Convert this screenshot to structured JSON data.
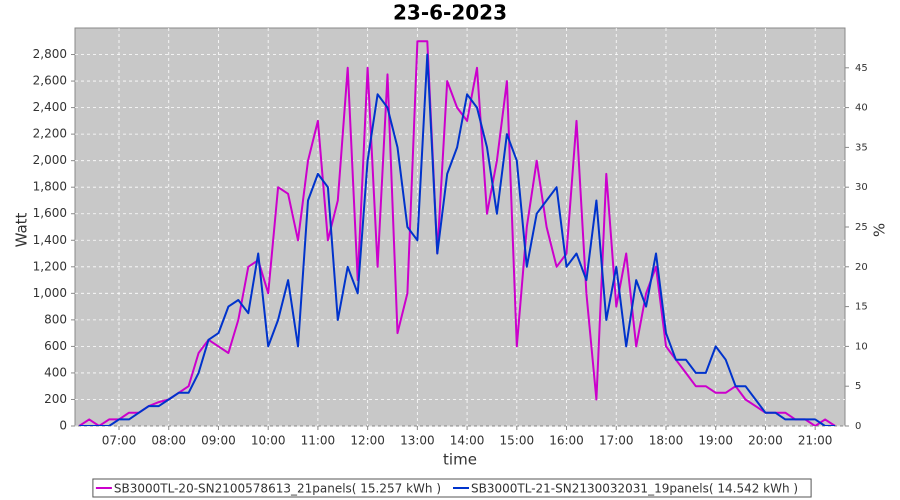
{
  "chart_data": {
    "type": "line",
    "title": "23-6-2023",
    "xlabel": "time",
    "ylabel": "Watt",
    "y2label": "%",
    "x": [
      6.2,
      6.4,
      6.6,
      6.8,
      7.0,
      7.2,
      7.4,
      7.6,
      7.8,
      8.0,
      8.2,
      8.4,
      8.6,
      8.8,
      9.0,
      9.2,
      9.4,
      9.6,
      9.8,
      10.0,
      10.2,
      10.4,
      10.6,
      10.8,
      11.0,
      11.2,
      11.4,
      11.6,
      11.8,
      12.0,
      12.2,
      12.4,
      12.6,
      12.8,
      13.0,
      13.2,
      13.4,
      13.6,
      13.8,
      14.0,
      14.2,
      14.4,
      14.6,
      14.8,
      15.0,
      15.2,
      15.4,
      15.6,
      15.8,
      16.0,
      16.2,
      16.4,
      16.6,
      16.8,
      17.0,
      17.2,
      17.4,
      17.6,
      17.8,
      18.0,
      18.2,
      18.4,
      18.6,
      18.8,
      19.0,
      19.2,
      19.4,
      19.6,
      19.8,
      20.0,
      20.2,
      20.4,
      20.6,
      20.8,
      21.0,
      21.2,
      21.4
    ],
    "series": [
      {
        "name": "SB3000TL-20-SN2100578613_21panels( 15.257 kWh )",
        "color": "#cc00cc",
        "values": [
          0,
          50,
          0,
          50,
          50,
          100,
          100,
          150,
          180,
          200,
          250,
          300,
          550,
          650,
          600,
          550,
          800,
          1200,
          1250,
          1000,
          1800,
          1750,
          1400,
          2000,
          2300,
          1400,
          1700,
          2700,
          1100,
          2700,
          1200,
          2650,
          700,
          1000,
          2900,
          2900,
          1300,
          2600,
          2400,
          2300,
          2700,
          1600,
          2000,
          2600,
          600,
          1500,
          2000,
          1500,
          1200,
          1300,
          2300,
          1000,
          200,
          1900,
          900,
          1300,
          600,
          1000,
          1200,
          600,
          500,
          400,
          300,
          300,
          250,
          250,
          300,
          200,
          150,
          100,
          100,
          100,
          50,
          50,
          0,
          50,
          0
        ]
      },
      {
        "name": "SB3000TL-21-SN2130032031_19panels( 14.542 kWh )",
        "color": "#0033cc",
        "values": [
          0,
          0,
          0,
          0,
          50,
          50,
          100,
          150,
          150,
          200,
          250,
          250,
          400,
          650,
          700,
          900,
          950,
          850,
          1300,
          600,
          800,
          1100,
          600,
          1700,
          1900,
          1800,
          800,
          1200,
          1000,
          2000,
          2500,
          2400,
          2100,
          1500,
          1400,
          2800,
          1300,
          1900,
          2100,
          2500,
          2400,
          2100,
          1600,
          2200,
          2000,
          1200,
          1600,
          1700,
          1800,
          1200,
          1300,
          1100,
          1700,
          800,
          1200,
          600,
          1100,
          900,
          1300,
          700,
          500,
          500,
          400,
          400,
          600,
          500,
          300,
          300,
          200,
          100,
          100,
          50,
          50,
          50,
          50,
          0,
          0
        ]
      }
    ],
    "xlim": [
      6.115,
      21.6
    ],
    "xticks": [
      {
        "value": 7,
        "label": "07:00"
      },
      {
        "value": 8,
        "label": "08:00"
      },
      {
        "value": 9,
        "label": "09:00"
      },
      {
        "value": 10,
        "label": "10:00"
      },
      {
        "value": 11,
        "label": "11:00"
      },
      {
        "value": 12,
        "label": "12:00"
      },
      {
        "value": 13,
        "label": "13:00"
      },
      {
        "value": 14,
        "label": "14:00"
      },
      {
        "value": 15,
        "label": "15:00"
      },
      {
        "value": 16,
        "label": "16:00"
      },
      {
        "value": 17,
        "label": "17:00"
      },
      {
        "value": 18,
        "label": "18:00"
      },
      {
        "value": 19,
        "label": "19:00"
      },
      {
        "value": 20,
        "label": "20:00"
      },
      {
        "value": 21,
        "label": "21:00"
      }
    ],
    "ylim": [
      0,
      3000
    ],
    "yticks": [
      0,
      200,
      400,
      600,
      800,
      {
        "value": 1000,
        "label": "1,000"
      },
      {
        "value": 1200,
        "label": "1,200"
      },
      {
        "value": 1400,
        "label": "1,400"
      },
      {
        "value": 1600,
        "label": "1,600"
      },
      {
        "value": 1800,
        "label": "1,800"
      },
      {
        "value": 2000,
        "label": "2,000"
      },
      {
        "value": 2200,
        "label": "2,200"
      },
      {
        "value": 2400,
        "label": "2,400"
      },
      {
        "value": 2600,
        "label": "2,600"
      },
      {
        "value": 2800,
        "label": "2,800"
      }
    ],
    "y2lim": [
      0,
      50
    ],
    "y2ticks": [
      0,
      5,
      10,
      15,
      20,
      25,
      30,
      35,
      40,
      45
    ],
    "grid": true,
    "legend": "bottom"
  }
}
